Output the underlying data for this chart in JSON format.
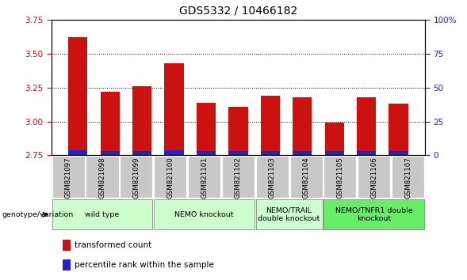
{
  "title": "GDS5332 / 10466182",
  "samples": [
    "GSM821097",
    "GSM821098",
    "GSM821099",
    "GSM821100",
    "GSM821101",
    "GSM821102",
    "GSM821103",
    "GSM821104",
    "GSM821105",
    "GSM821106",
    "GSM821107"
  ],
  "red_values": [
    3.62,
    3.22,
    3.26,
    3.43,
    3.14,
    3.11,
    3.19,
    3.18,
    2.99,
    3.18,
    3.13
  ],
  "blue_values": [
    0.04,
    0.03,
    0.03,
    0.04,
    0.03,
    0.03,
    0.03,
    0.03,
    0.03,
    0.03,
    0.03
  ],
  "base": 2.75,
  "ylim_left": [
    2.75,
    3.75
  ],
  "yticks_left": [
    2.75,
    3.0,
    3.25,
    3.5,
    3.75
  ],
  "yticks_right": [
    0,
    25,
    50,
    75,
    100
  ],
  "red_color": "#cc1111",
  "blue_color": "#2222cc",
  "bar_width": 0.6,
  "group_labels": [
    "wild type",
    "NEMO knockout",
    "NEMO/TRAIL\ndouble knockout",
    "NEMO/TNFR1 double\nknockout"
  ],
  "group_ranges": [
    [
      0,
      2
    ],
    [
      3,
      5
    ],
    [
      6,
      7
    ],
    [
      8,
      10
    ]
  ],
  "group_light_color": "#ccffcc",
  "group_dark_color": "#66ee66",
  "xlabel": "genotype/variation",
  "legend_red": "transformed count",
  "legend_blue": "percentile rank within the sample",
  "tick_bg_color": "#c8c8c8",
  "title_fontsize": 10,
  "tick_fontsize": 7.5
}
